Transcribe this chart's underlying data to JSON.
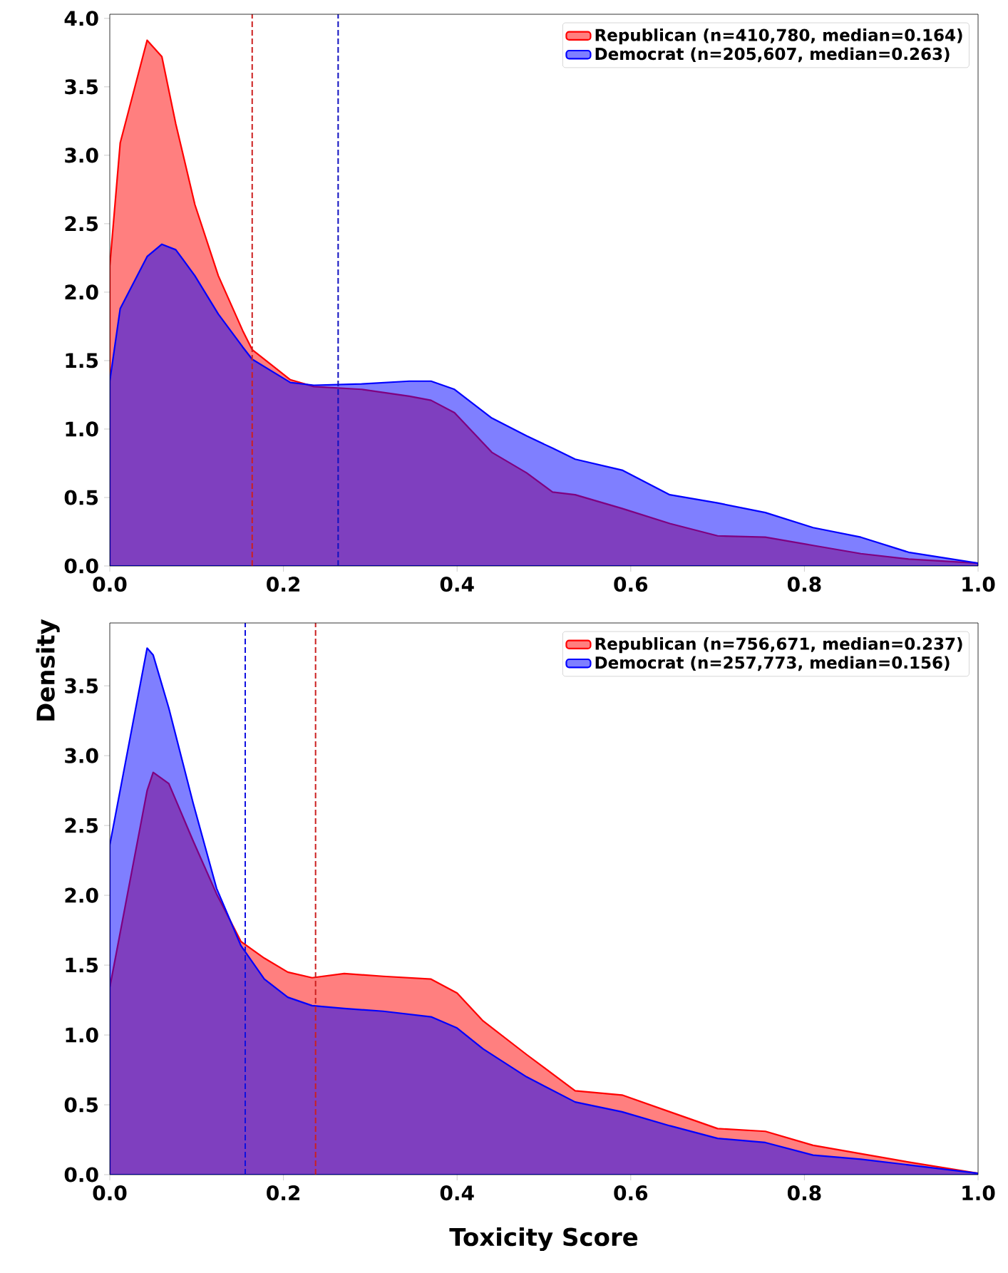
{
  "chart_data": [
    {
      "type": "area",
      "ylabel": "Density",
      "x": [
        0,
        0.012,
        0.043,
        0.06,
        0.076,
        0.098,
        0.125,
        0.153,
        0.164,
        0.208,
        0.235,
        0.29,
        0.345,
        0.37,
        0.397,
        0.44,
        0.48,
        0.51,
        0.536,
        0.59,
        0.645,
        0.7,
        0.755,
        0.81,
        0.865,
        0.92,
        1.0
      ],
      "series": [
        {
          "name": "Republican (n=410,780, median=0.164)",
          "color": "#ff0000",
          "values": [
            2.19,
            3.09,
            3.84,
            3.72,
            3.23,
            2.64,
            2.12,
            1.72,
            1.58,
            1.36,
            1.31,
            1.29,
            1.24,
            1.21,
            1.12,
            0.83,
            0.68,
            0.54,
            0.52,
            0.42,
            0.31,
            0.22,
            0.21,
            0.15,
            0.09,
            0.05,
            0.02
          ]
        },
        {
          "name": "Democrat (n=205,607, median=0.263)",
          "color": "#0000ff",
          "values": [
            1.35,
            1.88,
            2.26,
            2.35,
            2.31,
            2.12,
            1.84,
            1.6,
            1.51,
            1.34,
            1.32,
            1.33,
            1.35,
            1.35,
            1.29,
            1.08,
            0.95,
            0.86,
            0.78,
            0.7,
            0.52,
            0.46,
            0.39,
            0.28,
            0.21,
            0.1,
            0.02
          ]
        }
      ],
      "xlim": [
        0,
        1.0
      ],
      "ylim": [
        0,
        4.03
      ],
      "xticks": [
        {
          "value": 0,
          "label": "0.0"
        },
        {
          "value": 0.2,
          "label": "0.2"
        },
        {
          "value": 0.4,
          "label": "0.4"
        },
        {
          "value": 0.6,
          "label": "0.6"
        },
        {
          "value": 0.8,
          "label": "0.8"
        },
        {
          "value": 1.0,
          "label": "1.0"
        }
      ],
      "yticks": [
        {
          "value": 0,
          "label": "0.0"
        },
        {
          "value": 0.5,
          "label": "0.5"
        },
        {
          "value": 1.0,
          "label": "1.0"
        },
        {
          "value": 1.5,
          "label": "1.5"
        },
        {
          "value": 2.0,
          "label": "2.0"
        },
        {
          "value": 2.5,
          "label": "2.5"
        },
        {
          "value": 3.0,
          "label": "3.0"
        },
        {
          "value": 3.5,
          "label": "3.5"
        },
        {
          "value": 4.0,
          "label": "4.0"
        }
      ],
      "ref_lines": [
        {
          "axis": "x",
          "value": 0.164,
          "color": "#cc2020",
          "line_style": "dashed"
        },
        {
          "axis": "x",
          "value": 0.263,
          "color": "#1010c0",
          "line_style": "dashed"
        }
      ],
      "legend": "top right"
    },
    {
      "type": "area",
      "xlabel": "Toxicity Score",
      "x": [
        0,
        0.043,
        0.05,
        0.068,
        0.096,
        0.123,
        0.151,
        0.178,
        0.205,
        0.233,
        0.27,
        0.315,
        0.37,
        0.4,
        0.43,
        0.48,
        0.536,
        0.59,
        0.645,
        0.7,
        0.755,
        0.81,
        0.865,
        0.92,
        1.0
      ],
      "series": [
        {
          "name": "Republican (n=756,671, median=0.237)",
          "color": "#ff0000",
          "values": [
            1.34,
            2.75,
            2.88,
            2.8,
            2.39,
            2.01,
            1.67,
            1.55,
            1.45,
            1.41,
            1.44,
            1.42,
            1.4,
            1.3,
            1.1,
            0.86,
            0.6,
            0.57,
            0.45,
            0.33,
            0.31,
            0.21,
            0.15,
            0.09,
            0.01
          ]
        },
        {
          "name": "Democrat (n=257,773, median=0.156)",
          "color": "#0000ff",
          "values": [
            2.36,
            3.77,
            3.72,
            3.34,
            2.66,
            2.05,
            1.64,
            1.4,
            1.27,
            1.21,
            1.19,
            1.17,
            1.13,
            1.05,
            0.9,
            0.7,
            0.52,
            0.45,
            0.35,
            0.26,
            0.23,
            0.14,
            0.11,
            0.07,
            0.01
          ]
        }
      ],
      "xlim": [
        0,
        1.0
      ],
      "ylim": [
        0,
        3.95
      ],
      "xticks": [
        {
          "value": 0,
          "label": "0.0"
        },
        {
          "value": 0.2,
          "label": "0.2"
        },
        {
          "value": 0.4,
          "label": "0.4"
        },
        {
          "value": 0.6,
          "label": "0.6"
        },
        {
          "value": 0.8,
          "label": "0.8"
        },
        {
          "value": 1.0,
          "label": "1.0"
        }
      ],
      "yticks": [
        {
          "value": 0,
          "label": "0.0"
        },
        {
          "value": 0.5,
          "label": "0.5"
        },
        {
          "value": 1.0,
          "label": "1.0"
        },
        {
          "value": 1.5,
          "label": "1.5"
        },
        {
          "value": 2.0,
          "label": "2.0"
        },
        {
          "value": 2.5,
          "label": "2.5"
        },
        {
          "value": 3.0,
          "label": "3.0"
        },
        {
          "value": 3.5,
          "label": "3.5"
        }
      ],
      "ref_lines": [
        {
          "axis": "x",
          "value": 0.156,
          "color": "#1010e0",
          "line_style": "dashed"
        },
        {
          "axis": "x",
          "value": 0.237,
          "color": "#cc2020",
          "line_style": "dashed"
        }
      ],
      "legend": "top right"
    }
  ]
}
